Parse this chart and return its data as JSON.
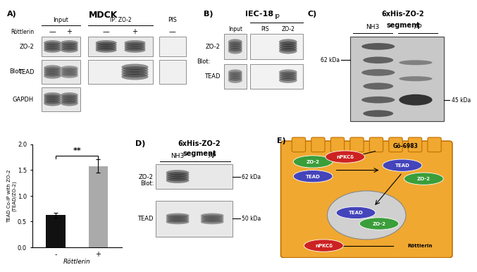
{
  "title_A": "MDCK",
  "title_B": "IEC-18",
  "title_C_line1": "6xHis-ZO-2",
  "title_C_line2": "segment",
  "title_D_line1": "6xHis-ZO-2",
  "title_D_line2": "segment",
  "label_A": "A)",
  "label_B": "B)",
  "label_C": "C)",
  "label_D": "D)",
  "label_E": "E)",
  "bar_values": [
    0.62,
    1.57
  ],
  "bar_errors": [
    0.05,
    0.13
  ],
  "bar_colors": [
    "#111111",
    "#aaaaaa"
  ],
  "bar_categories": [
    "-",
    "+"
  ],
  "bar_xlabel": "Röttlerin",
  "bar_ylabel": "TEAD Co-IP with ZO-2\n(TEAD/ZO-2)",
  "bar_ylim": [
    0,
    2.0
  ],
  "bar_yticks": [
    0.0,
    0.5,
    1.0,
    1.5,
    2.0
  ],
  "significance": "**",
  "blot_label": "Blot:",
  "rottlerin_label": "Röttlerin",
  "zo2_label": "ZO-2",
  "tead_label": "TEAD",
  "gapdh_label": "GAPDH",
  "input_label": "Input",
  "ip_zo2_label": "IP: ZO-2",
  "pis_label": "PIS",
  "ip_label": "IP",
  "nh3_label": "NH3",
  "ap_label": "AP",
  "kda_62": "62 kDa",
  "kda_45": "45 kDa",
  "kda_50": "50 kDa",
  "zo2_color": "#3a9e3a",
  "tead_color": "#4444bb",
  "npkc_color": "#cc2222",
  "cell_bg": "#f0a830",
  "nucleus_color": "#c8c8c8",
  "go6983_label": "Gö-6983",
  "rottlerin_schematic": "Röttlerin",
  "npkcd_label": "nPKCδ",
  "bg_light": "#e8e8e8",
  "bg_white": "#f5f5f5"
}
